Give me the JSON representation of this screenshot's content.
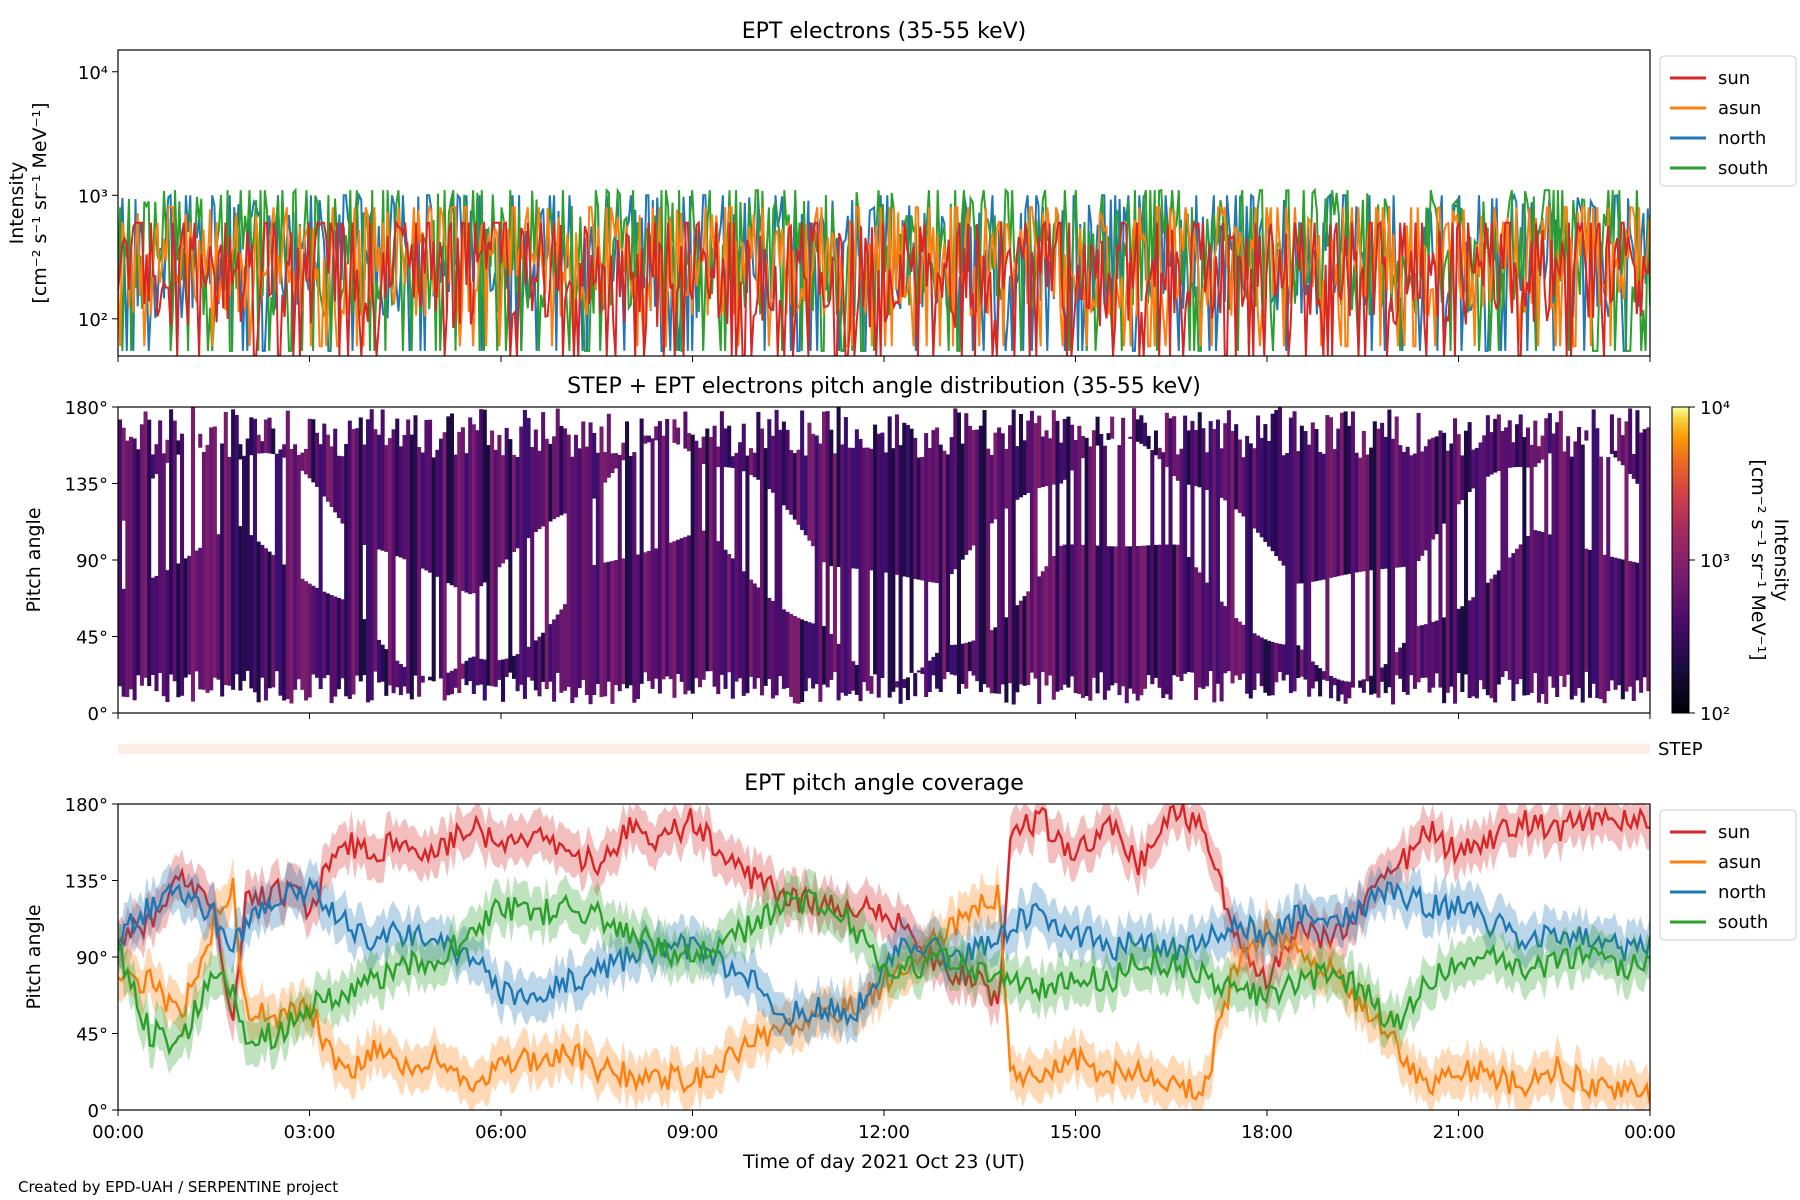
{
  "footer": "Created by EPD-UAH / SERPENTINE project",
  "colors": {
    "sun": "#d62728",
    "asun": "#ff7f0e",
    "north": "#1f77b4",
    "south": "#2ca02c",
    "step_bar": "#fdeee8"
  },
  "chart_data": [
    {
      "type": "line",
      "title": "EPT electrons (35-55 keV)",
      "ylabel_line1": "Intensity",
      "ylabel_line2": "[cm⁻² s⁻¹ sr⁻¹ MeV⁻¹]",
      "yscale": "log",
      "ylim": [
        50,
        15000
      ],
      "yticks": [
        "10²",
        "10³",
        "10⁴"
      ],
      "xlim": [
        "2021-10-23 00:00",
        "2021-10-24 00:00"
      ],
      "grid": false,
      "legend_position": "outside-right",
      "series": [
        {
          "name": "sun",
          "color": "#d62728",
          "typical_range": [
            50,
            600
          ]
        },
        {
          "name": "asun",
          "color": "#ff7f0e",
          "typical_range": [
            60,
            800
          ]
        },
        {
          "name": "north",
          "color": "#1f77b4",
          "typical_range": [
            55,
            1000
          ]
        },
        {
          "name": "south",
          "color": "#2ca02c",
          "typical_range": [
            55,
            1100
          ]
        }
      ]
    },
    {
      "type": "heatmap",
      "title": "STEP + EPT electrons pitch angle distribution (35-55 keV)",
      "ylabel": "Pitch angle",
      "ylim": [
        0,
        180
      ],
      "yticks": [
        "0°",
        "45°",
        "90°",
        "135°",
        "180°"
      ],
      "colorbar": {
        "label_line1": "Intensity",
        "label_line2": "[cm⁻² s⁻¹ sr⁻¹ MeV⁻¹]",
        "scale": "log",
        "range": [
          100,
          10000
        ],
        "ticks": [
          "10²",
          "10³",
          "10⁴"
        ],
        "colormap": "inferno"
      },
      "step_label": "STEP"
    },
    {
      "type": "line",
      "title": "EPT pitch angle coverage",
      "ylabel": "Pitch angle",
      "xlabel": "Time of day 2021 Oct 23 (UT)",
      "ylim": [
        0,
        180
      ],
      "yticks": [
        "0°",
        "45°",
        "90°",
        "135°",
        "180°"
      ],
      "xticks": [
        "00:00",
        "03:00",
        "06:00",
        "09:00",
        "12:00",
        "15:00",
        "18:00",
        "21:00",
        "00:00"
      ],
      "legend_position": "outside-right",
      "shaded_band": true,
      "series": [
        {
          "name": "sun",
          "color": "#d62728",
          "x_hours": [
            0,
            0.5,
            1,
            1.5,
            1.8,
            2,
            2.5,
            3,
            3.5,
            4,
            4.5,
            5,
            5.5,
            6,
            6.5,
            7,
            7.5,
            8,
            8.5,
            9,
            9.5,
            10,
            10.5,
            11,
            11.5,
            12,
            12.5,
            13,
            13.5,
            13.8,
            14,
            14.5,
            15,
            15.5,
            16,
            16.5,
            17,
            17.5,
            18,
            18.5,
            19,
            19.5,
            20,
            20.5,
            21,
            21.5,
            22,
            22.5,
            23,
            23.5,
            24
          ],
          "values": [
            100,
            110,
            135,
            120,
            50,
            120,
            130,
            120,
            160,
            150,
            160,
            150,
            170,
            155,
            160,
            150,
            145,
            165,
            160,
            170,
            150,
            135,
            125,
            120,
            120,
            115,
            100,
            80,
            75,
            60,
            165,
            170,
            150,
            170,
            145,
            175,
            170,
            100,
            75,
            105,
            100,
            120,
            140,
            165,
            150,
            160,
            170,
            165,
            170,
            170,
            170
          ]
        },
        {
          "name": "asun",
          "color": "#ff7f0e",
          "x_hours": [
            0,
            0.5,
            1,
            1.5,
            1.8,
            2,
            2.5,
            3,
            3.5,
            4,
            4.5,
            5,
            5.5,
            6,
            6.5,
            7,
            7.5,
            8,
            8.5,
            9,
            9.5,
            10,
            10.5,
            11,
            11.5,
            12,
            12.5,
            13,
            13.5,
            13.8,
            14,
            14.5,
            15,
            15.5,
            16,
            16.5,
            17,
            17.5,
            18,
            18.5,
            19,
            19.5,
            20,
            20.5,
            21,
            21.5,
            22,
            22.5,
            23,
            23.5,
            24
          ],
          "values": [
            80,
            75,
            55,
            110,
            130,
            60,
            55,
            60,
            20,
            35,
            25,
            30,
            10,
            25,
            30,
            35,
            25,
            20,
            20,
            15,
            30,
            40,
            50,
            55,
            60,
            75,
            90,
            105,
            120,
            125,
            20,
            20,
            30,
            20,
            25,
            15,
            10,
            85,
            105,
            95,
            80,
            60,
            40,
            15,
            25,
            20,
            15,
            25,
            15,
            10,
            10
          ]
        },
        {
          "name": "north",
          "color": "#1f77b4",
          "x_hours": [
            0,
            0.5,
            1,
            1.5,
            1.8,
            2,
            2.5,
            3,
            3.5,
            4,
            4.5,
            5,
            5.5,
            6,
            6.5,
            7,
            7.5,
            8,
            8.5,
            9,
            9.5,
            10,
            10.5,
            11,
            11.5,
            12,
            12.5,
            13,
            13.5,
            13.8,
            14,
            14.5,
            15,
            15.5,
            16,
            16.5,
            17,
            17.5,
            18,
            18.5,
            19,
            19.5,
            20,
            20.5,
            21,
            21.5,
            22,
            22.5,
            23,
            23.5,
            24
          ],
          "values": [
            100,
            120,
            130,
            115,
            95,
            110,
            125,
            130,
            110,
            100,
            105,
            100,
            90,
            70,
            65,
            75,
            80,
            90,
            95,
            95,
            85,
            75,
            55,
            60,
            55,
            85,
            100,
            90,
            95,
            100,
            110,
            115,
            105,
            95,
            100,
            95,
            100,
            110,
            100,
            115,
            110,
            120,
            130,
            120,
            120,
            110,
            100,
            105,
            100,
            95,
            95
          ]
        },
        {
          "name": "south",
          "color": "#2ca02c",
          "x_hours": [
            0,
            0.5,
            1,
            1.5,
            1.8,
            2,
            2.5,
            3,
            3.5,
            4,
            4.5,
            5,
            5.5,
            6,
            6.5,
            7,
            7.5,
            8,
            8.5,
            9,
            9.5,
            10,
            10.5,
            11,
            11.5,
            12,
            12.5,
            13,
            13.5,
            13.8,
            14,
            14.5,
            15,
            15.5,
            16,
            16.5,
            17,
            17.5,
            18,
            18.5,
            19,
            19.5,
            20,
            20.5,
            21,
            21.5,
            22,
            22.5,
            23,
            23.5,
            24
          ],
          "values": [
            95,
            45,
            40,
            85,
            70,
            40,
            45,
            60,
            70,
            75,
            85,
            90,
            100,
            120,
            115,
            120,
            115,
            105,
            95,
            90,
            100,
            110,
            125,
            120,
            110,
            80,
            85,
            90,
            80,
            75,
            75,
            70,
            80,
            75,
            90,
            85,
            80,
            70,
            65,
            75,
            80,
            70,
            50,
            75,
            85,
            90,
            80,
            85,
            90,
            85,
            85
          ]
        }
      ]
    }
  ]
}
